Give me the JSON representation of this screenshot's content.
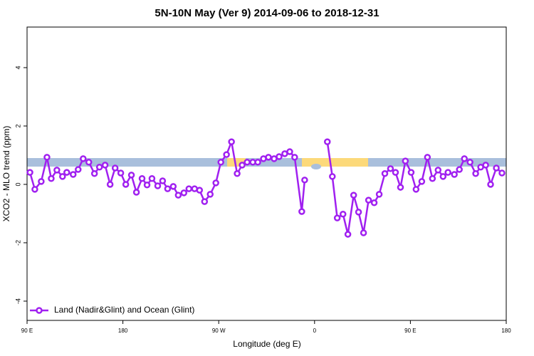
{
  "chart_data": {
    "type": "line",
    "title": "5N-10N May (Ver 9)   2014-09-06 to 2018-12-31",
    "xlabel": "Longitude (deg E)",
    "ylabel": "XCO2 - MLO trend (ppm)",
    "xlim": [
      90,
      540
    ],
    "ylim": [
      -4.66,
      5.39
    ],
    "xticks": [
      {
        "value": 90,
        "label": "90 E"
      },
      180,
      {
        "value": 270,
        "label": "90 W"
      },
      {
        "value": 360,
        "label": "0"
      },
      {
        "value": 450,
        "label": "90 E"
      },
      {
        "value": 540,
        "label": "180"
      }
    ],
    "yticks": [
      -4,
      -2,
      0,
      2,
      4
    ],
    "legend": "bottomleft",
    "x": [
      92.7,
      97.3,
      103.3,
      108.7,
      112.7,
      118,
      123.3,
      127.3,
      133.3,
      138,
      142.7,
      148,
      153.3,
      158,
      163.3,
      168,
      172.7,
      178,
      182.7,
      188,
      192.7,
      198,
      202.7,
      207.3,
      212.7,
      217.3,
      222,
      227.3,
      232,
      237.3,
      242,
      247.3,
      252,
      256.7,
      262,
      267.3,
      272,
      277.3,
      282,
      287.3,
      292,
      296.7,
      302,
      306.7,
      312,
      316.7,
      322,
      326.7,
      332,
      336.7,
      341.3,
      348,
      350.7,
      359.3,
      372,
      376.7,
      381.3,
      386.7,
      391.3,
      396.7,
      401.3,
      406,
      410.7,
      416,
      420.7,
      426,
      431.3,
      436,
      440.7,
      445.3,
      450.7,
      455.3,
      460.7,
      466,
      470.7,
      476,
      480.7,
      485.3,
      491.3,
      496,
      500.7,
      506,
      511.3,
      516,
      520.7,
      525.3,
      530.7,
      536
    ],
    "series": [
      {
        "name": "Land (Nadir&Glint) and Ocean (Glint)",
        "color": "#a020f0",
        "values": [
          0.41,
          -0.17,
          0.1,
          0.93,
          0.2,
          0.49,
          0.27,
          0.41,
          0.34,
          0.51,
          0.88,
          0.76,
          0.37,
          0.59,
          0.66,
          0,
          0.56,
          0.39,
          0,
          0.32,
          -0.27,
          0.2,
          -0.02,
          0.2,
          -0.05,
          0.12,
          -0.15,
          -0.07,
          -0.37,
          -0.29,
          -0.15,
          -0.15,
          -0.2,
          -0.59,
          -0.34,
          0.05,
          0.76,
          1.02,
          1.46,
          0.37,
          0.66,
          0.76,
          0.76,
          0.76,
          0.88,
          0.93,
          0.88,
          0.95,
          1.05,
          1.12,
          0.93,
          -0.93,
          0.15,
          null,
          1.46,
          0.27,
          -1.15,
          -1.02,
          -1.71,
          -0.37,
          -0.95,
          -1.66,
          -0.54,
          -0.63,
          -0.34,
          0.37,
          0.54,
          0.41,
          -0.1,
          0.8,
          0.41,
          -0.17,
          0.1,
          0.93,
          0.2,
          0.49,
          0.27,
          0.41,
          0.34,
          0.51,
          0.88,
          0.76,
          0.37,
          0.59,
          0.66,
          0,
          0.56,
          0.39
        ]
      }
    ]
  }
}
